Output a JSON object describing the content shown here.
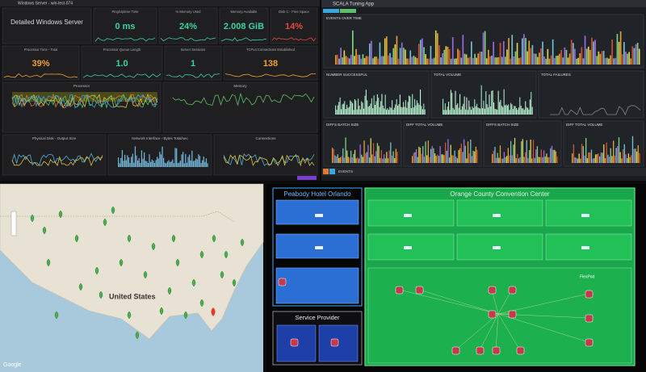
{
  "windows_dashboard": {
    "title": "Windows Server - win-test-074",
    "heading": "Detailed Windows Server",
    "stats": [
      {
        "label": "Ping/Uptime Time",
        "value": "0 ms"
      },
      {
        "label": "% Memory Used",
        "value": "24%"
      },
      {
        "label": "Memory Available",
        "value": "2.008 GiB"
      },
      {
        "label": "Disk C - Free Space",
        "value": "14%"
      },
      {
        "label": "Processor Time - Total",
        "value": "39%"
      },
      {
        "label": "Processor Queue Length",
        "value": "1.0"
      },
      {
        "label": "Server Sessions",
        "value": "1"
      },
      {
        "label": "TCPv4 Connections Established",
        "value": "138"
      }
    ],
    "graphs": [
      "Processor",
      "Memory",
      "Physical Disk - Output Size",
      "Network Interface - Bytes Total/sec",
      "Connections"
    ]
  },
  "scala_dashboard": {
    "title": "SCALA Tuning App",
    "panels": [
      "EVENTS OVER TIME",
      "NUMBER SUCCESSFUL",
      "TOTAL VOLUME",
      "TOTAL FAILURES",
      "DIFFS BATCH SIZE",
      "DIFF TOTAL VOLUME",
      "DIFFS BATCH SIZE",
      "DIFF TOTAL VOLUME"
    ],
    "footer": "EVENTS"
  },
  "map": {
    "label": "United States",
    "attribution": "Google"
  },
  "network": {
    "sites": [
      "Peabody Hotel Orlando",
      "Orange County Convention Center",
      "Service Provider"
    ],
    "flexpod": "FlexPod"
  }
}
